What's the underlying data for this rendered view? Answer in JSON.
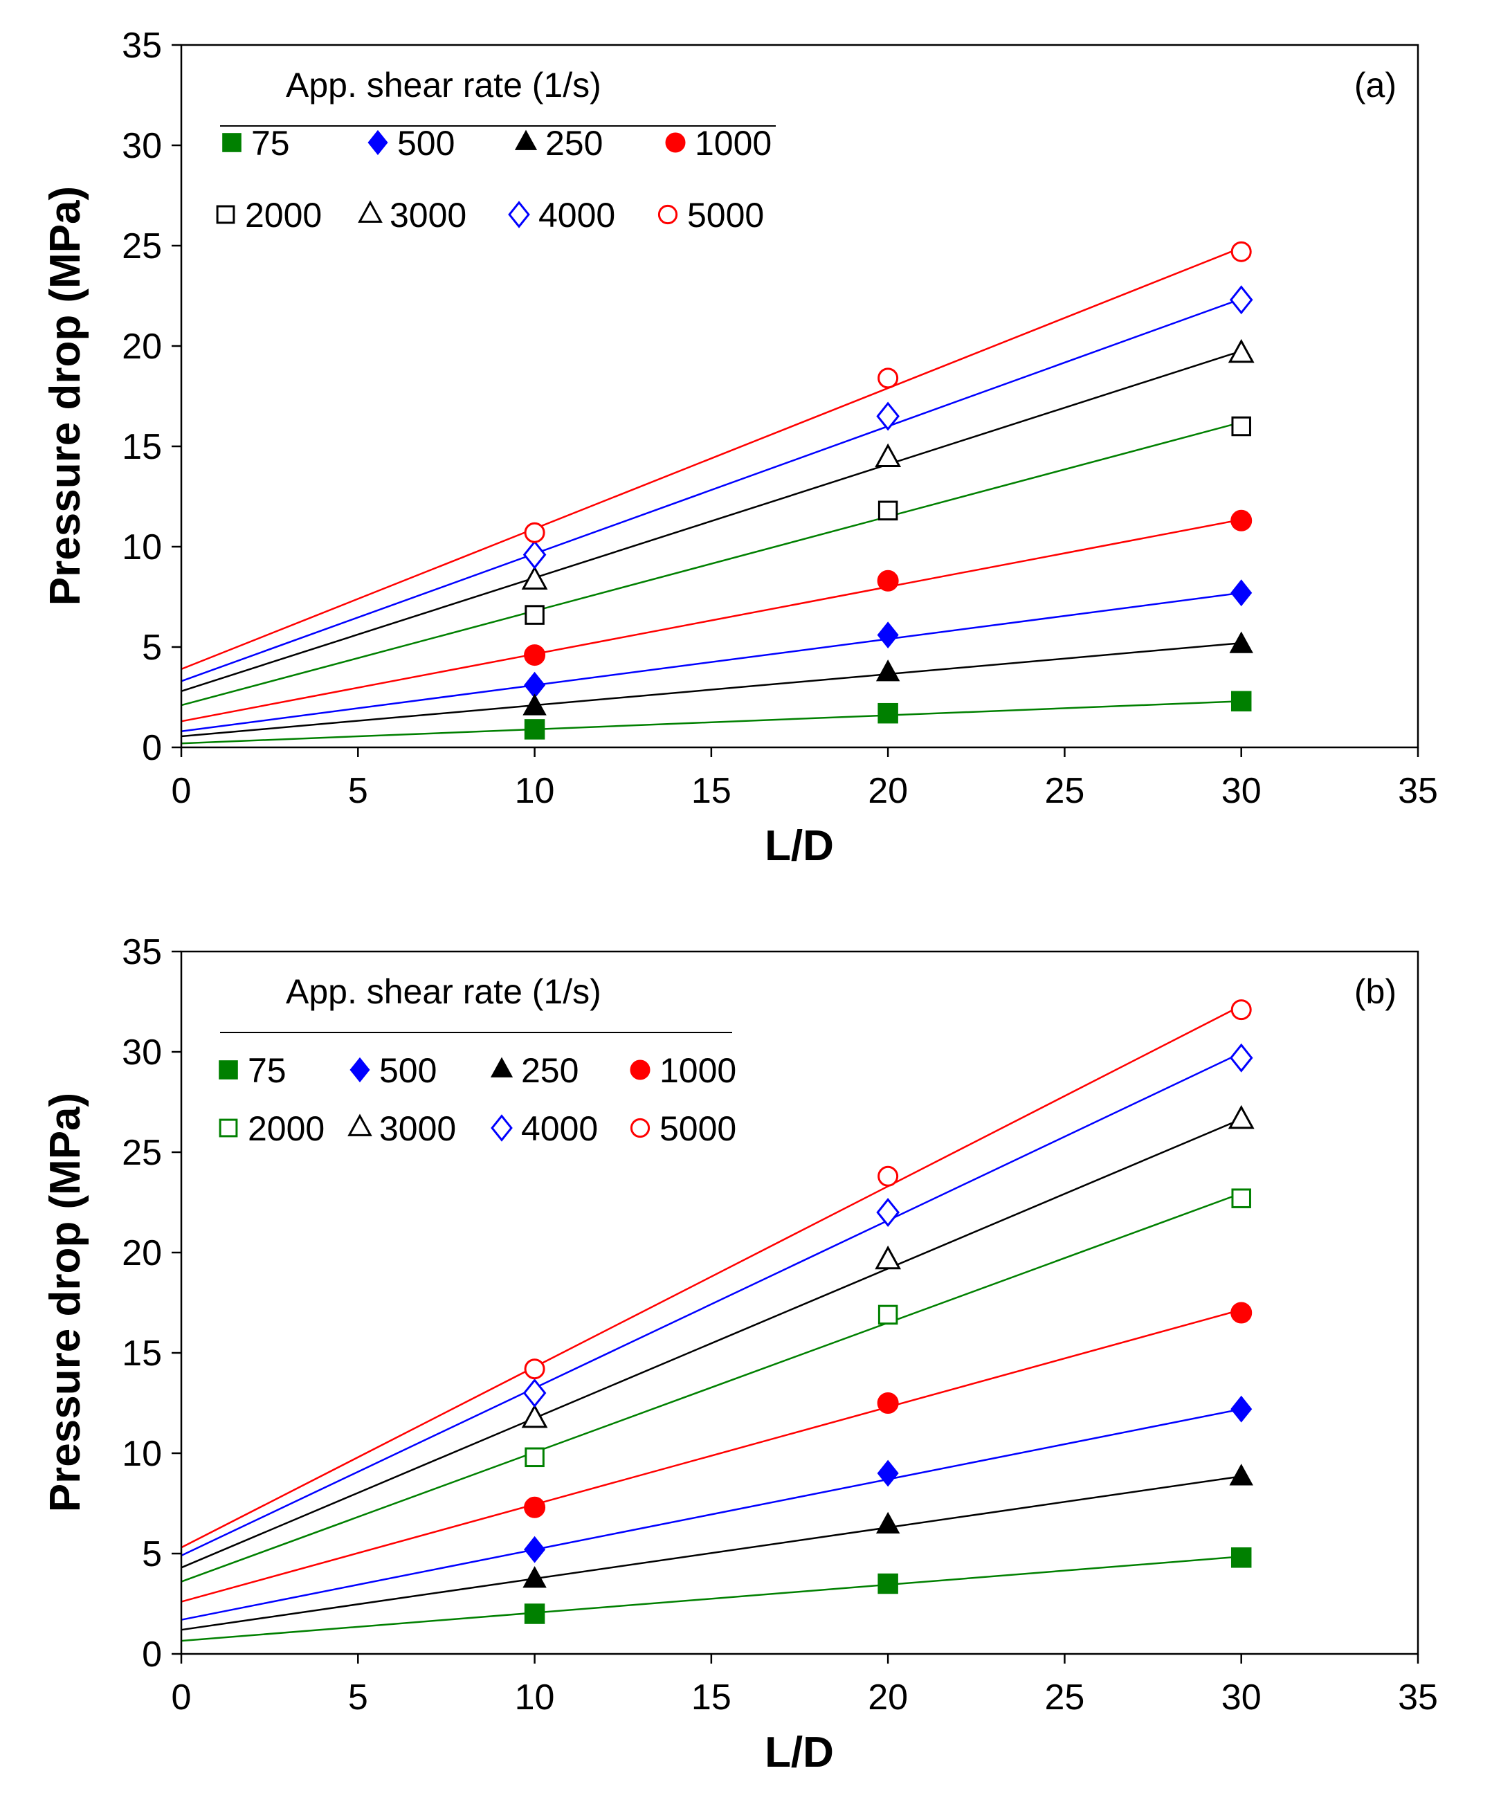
{
  "chart_data": [
    {
      "type": "scatter",
      "panel_label": "(a)",
      "xlabel": "L/D",
      "ylabel": "Pressure drop (MPa)",
      "xlim": [
        0,
        35
      ],
      "ylim": [
        0,
        35
      ],
      "xticks": [
        0,
        5,
        10,
        15,
        20,
        25,
        30,
        35
      ],
      "yticks": [
        0,
        5,
        10,
        15,
        20,
        25,
        30,
        35
      ],
      "grid": false,
      "legend_title": "App. shear rate (1/s)",
      "legend_position": "top-left",
      "series": [
        {
          "name": "75",
          "marker": "square-filled",
          "color": "#008000",
          "x": [
            10,
            20,
            30
          ],
          "y": [
            0.9,
            1.7,
            2.3
          ],
          "fit": [
            0.2,
            0.07
          ]
        },
        {
          "name": "500",
          "marker": "diamond-filled",
          "color": "#0000FF",
          "x": [
            10,
            20,
            30
          ],
          "y": [
            3.1,
            5.6,
            7.7
          ],
          "fit": [
            0.8,
            0.23
          ]
        },
        {
          "name": "250",
          "marker": "triangle-filled",
          "color": "#000000",
          "x": [
            10,
            20,
            30
          ],
          "y": [
            2.0,
            3.7,
            5.1
          ],
          "fit": [
            0.55,
            0.155
          ]
        },
        {
          "name": "1000",
          "marker": "circle-filled",
          "color": "#FF0000",
          "x": [
            10,
            20,
            30
          ],
          "y": [
            4.6,
            8.3,
            11.3
          ],
          "fit": [
            1.3,
            0.335
          ]
        },
        {
          "name": "2000",
          "marker": "square-open",
          "color": "#000000",
          "line_color": "#008000",
          "x": [
            10,
            20,
            30
          ],
          "y": [
            6.6,
            11.8,
            16.0
          ],
          "fit": [
            2.1,
            0.47
          ]
        },
        {
          "name": "3000",
          "marker": "triangle-open",
          "color": "#000000",
          "x": [
            10,
            20,
            30
          ],
          "y": [
            8.3,
            14.4,
            19.6
          ],
          "fit": [
            2.8,
            0.565
          ]
        },
        {
          "name": "4000",
          "marker": "diamond-open",
          "color": "#0000FF",
          "x": [
            10,
            20,
            30
          ],
          "y": [
            9.6,
            16.5,
            22.3
          ],
          "fit": [
            3.3,
            0.635
          ]
        },
        {
          "name": "5000",
          "marker": "circle-open",
          "color": "#FF0000",
          "x": [
            10,
            20,
            30
          ],
          "y": [
            10.7,
            18.4,
            24.7
          ],
          "fit": [
            3.9,
            0.7
          ]
        }
      ]
    },
    {
      "type": "scatter",
      "panel_label": "(b)",
      "xlabel": "L/D",
      "ylabel": "Pressure drop (MPa)",
      "xlim": [
        0,
        35
      ],
      "ylim": [
        0,
        35
      ],
      "xticks": [
        0,
        5,
        10,
        15,
        20,
        25,
        30,
        35
      ],
      "yticks": [
        0,
        5,
        10,
        15,
        20,
        25,
        30,
        35
      ],
      "grid": false,
      "legend_title": "App. shear rate (1/s)",
      "legend_position": "top-left",
      "series": [
        {
          "name": "75",
          "marker": "square-filled",
          "color": "#008000",
          "x": [
            10,
            20,
            30
          ],
          "y": [
            2.0,
            3.5,
            4.8
          ],
          "fit": [
            0.65,
            0.14
          ]
        },
        {
          "name": "500",
          "marker": "diamond-filled",
          "color": "#0000FF",
          "x": [
            10,
            20,
            30
          ],
          "y": [
            5.2,
            9.0,
            12.2
          ],
          "fit": [
            1.7,
            0.35
          ]
        },
        {
          "name": "250",
          "marker": "triangle-filled",
          "color": "#000000",
          "x": [
            10,
            20,
            30
          ],
          "y": [
            3.7,
            6.4,
            8.8
          ],
          "fit": [
            1.2,
            0.255
          ]
        },
        {
          "name": "1000",
          "marker": "circle-filled",
          "color": "#FF0000",
          "x": [
            10,
            20,
            30
          ],
          "y": [
            7.3,
            12.5,
            17.0
          ],
          "fit": [
            2.6,
            0.485
          ]
        },
        {
          "name": "2000",
          "marker": "square-open",
          "color": "#008000",
          "x": [
            10,
            20,
            30
          ],
          "y": [
            9.8,
            16.9,
            22.7
          ],
          "fit": [
            3.6,
            0.645
          ]
        },
        {
          "name": "3000",
          "marker": "triangle-open",
          "color": "#000000",
          "x": [
            10,
            20,
            30
          ],
          "y": [
            11.7,
            19.6,
            26.6
          ],
          "fit": [
            4.3,
            0.745
          ]
        },
        {
          "name": "4000",
          "marker": "diamond-open",
          "color": "#0000FF",
          "x": [
            10,
            20,
            30
          ],
          "y": [
            13.0,
            22.0,
            29.7
          ],
          "fit": [
            4.9,
            0.835
          ]
        },
        {
          "name": "5000",
          "marker": "circle-open",
          "color": "#FF0000",
          "x": [
            10,
            20,
            30
          ],
          "y": [
            14.2,
            23.8,
            32.1
          ],
          "fit": [
            5.3,
            0.9
          ]
        }
      ]
    }
  ]
}
